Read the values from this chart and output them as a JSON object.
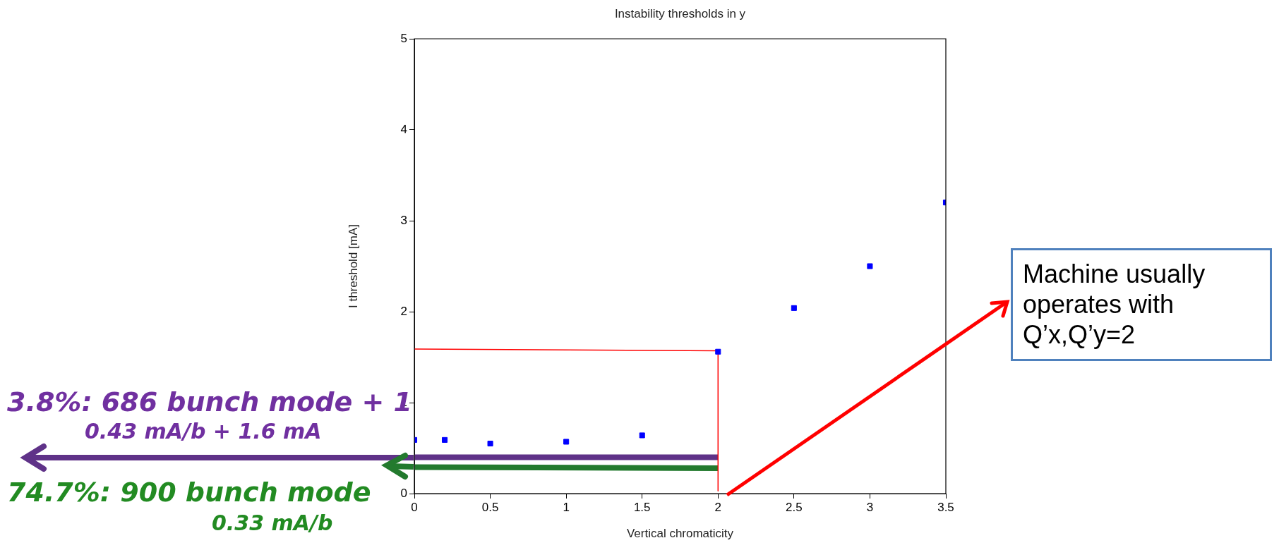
{
  "chart_data": {
    "type": "scatter",
    "title": "Instability thresholds in y",
    "xlabel": "Vertical chromaticity",
    "ylabel": "I threshold [mA]",
    "xlim": [
      0,
      3.5
    ],
    "xticks": [
      0,
      0.5,
      1,
      1.5,
      2,
      2.5,
      3,
      3.5
    ],
    "ylim": [
      0,
      5
    ],
    "yticks": [
      0,
      1,
      2,
      3,
      4,
      5
    ],
    "grid": false,
    "legend": false,
    "marker": "square",
    "series": [
      {
        "color": "#0000ff",
        "x": [
          0,
          0.2,
          0.5,
          1,
          1.5,
          2,
          2.5,
          3,
          3.5
        ],
        "values": [
          0.59,
          0.59,
          0.55,
          0.57,
          0.64,
          1.56,
          2.04,
          2.5,
          3.2
        ]
      },
      {
        "type": "line",
        "color": "#ff0000",
        "marker": "none",
        "x": [
          0,
          2,
          2
        ],
        "values": [
          1.59,
          1.57,
          0.03
        ]
      },
      {
        "type": "line",
        "color": "#5f3288",
        "marker": "none",
        "x": [
          0,
          2
        ],
        "values": [
          0.4,
          0.4
        ]
      },
      {
        "type": "line",
        "color": "#237a2e",
        "marker": "none",
        "x": [
          0,
          2
        ],
        "values": [
          0.29,
          0.28
        ]
      }
    ],
    "annotations": [
      "3.8%: 686 bunch mode + 1",
      "0.43 mA/b + 1.6 mA",
      "74.7%: 900 bunch mode",
      "0.33 mA/b",
      "Machine usually operates with Q’x,Q’y=2"
    ]
  }
}
